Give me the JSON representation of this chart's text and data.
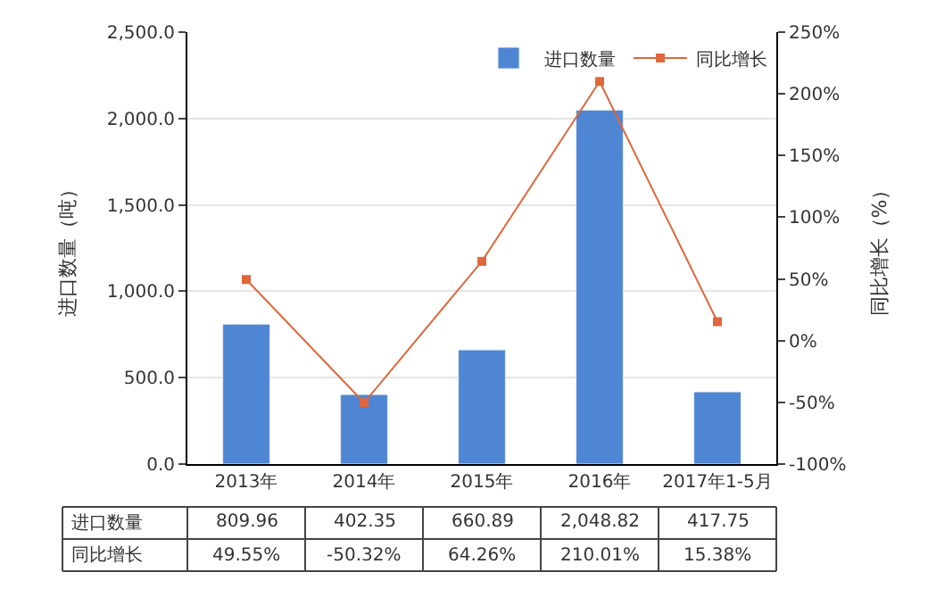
{
  "chart_data": {
    "type": "bar",
    "ylabel": "进口数量（吨）",
    "y2label": "同比增长（%）",
    "categories": [
      "2013年",
      "2014年",
      "2015年",
      "2016年",
      "2017年1-5月"
    ],
    "series": [
      {
        "name": "进口数量",
        "color": "#4f86d4",
        "values": [
          809.96,
          402.35,
          660.89,
          2048.82,
          417.75
        ],
        "value_labels": [
          "809.96",
          "402.35",
          "660.89",
          "2,048.82",
          "417.75"
        ]
      },
      {
        "name": "同比增长",
        "type": "line",
        "axis": "y2",
        "color": "#e0673c",
        "marker": "square",
        "values": [
          49.55,
          -50.32,
          64.26,
          210.01,
          15.38
        ],
        "value_labels": [
          "49.55%",
          "-50.32%",
          "64.26%",
          "210.01%",
          "15.38%"
        ]
      }
    ],
    "ylim": [
      0,
      2500
    ],
    "yticks": [
      {
        "value": 0,
        "label": "0.0"
      },
      {
        "value": 500,
        "label": "500.0"
      },
      {
        "value": 1000,
        "label": "1,000.0"
      },
      {
        "value": 1500,
        "label": "1,500.0"
      },
      {
        "value": 2000,
        "label": "2,000.0"
      },
      {
        "value": 2500,
        "label": "2,500.0"
      }
    ],
    "y2lim": [
      -100,
      250
    ],
    "y2ticks": [
      {
        "value": -100,
        "label": "-100%"
      },
      {
        "value": -50,
        "label": "-50%"
      },
      {
        "value": 0,
        "label": "0%"
      },
      {
        "value": 50,
        "label": "50%"
      },
      {
        "value": 100,
        "label": "100%"
      },
      {
        "value": 150,
        "label": "150%"
      },
      {
        "value": 200,
        "label": "200%"
      },
      {
        "value": 250,
        "label": "250%"
      }
    ],
    "grid": "y",
    "legend": "top right"
  }
}
